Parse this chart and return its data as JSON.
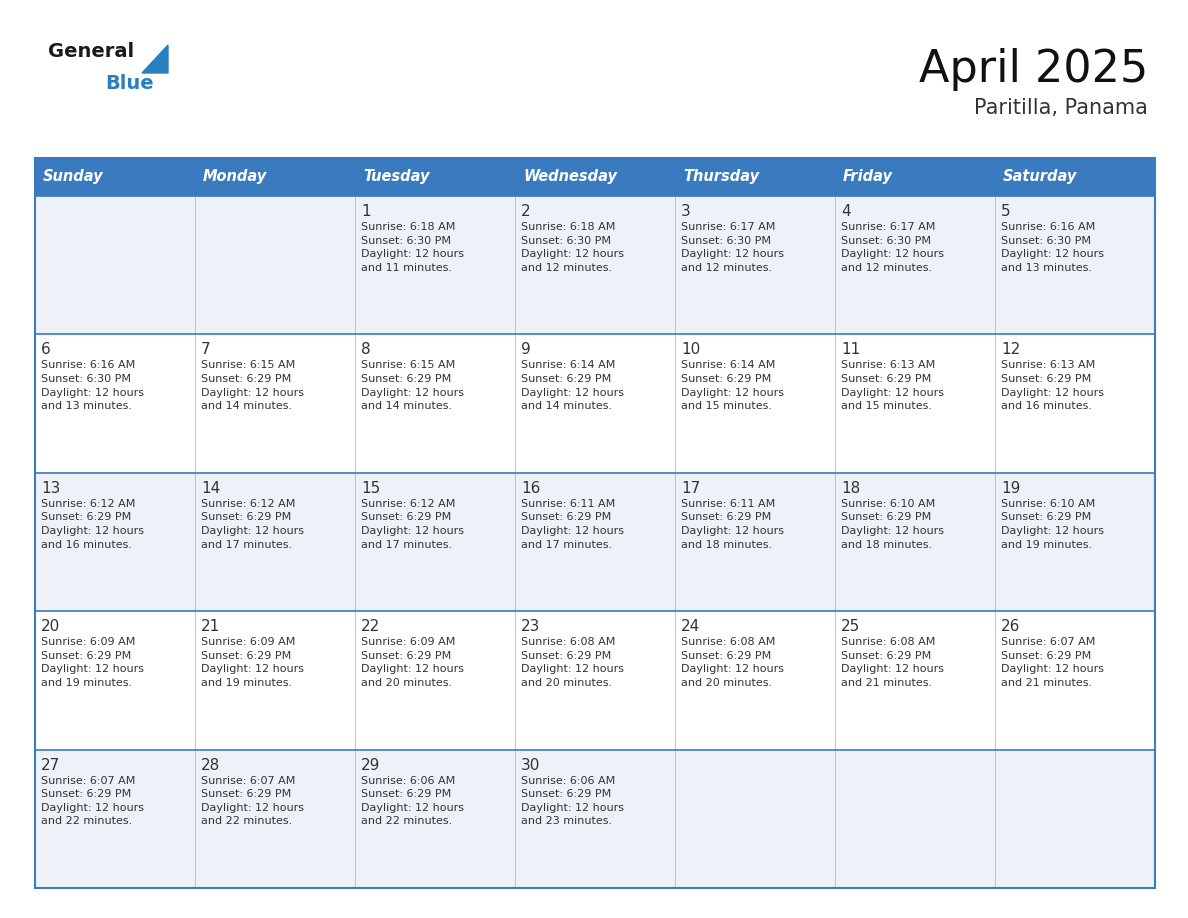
{
  "title": "April 2025",
  "subtitle": "Paritilla, Panama",
  "header_color": "#3a7abf",
  "header_text_color": "#ffffff",
  "border_color": "#3a7abf",
  "row_bg_odd": "#eef2f8",
  "row_bg_even": "#ffffff",
  "text_color": "#333333",
  "day_names": [
    "Sunday",
    "Monday",
    "Tuesday",
    "Wednesday",
    "Thursday",
    "Friday",
    "Saturday"
  ],
  "logo_general_color": "#1a1a1a",
  "logo_blue_color": "#2980c0",
  "logo_triangle_color": "#2980c0",
  "weeks": [
    [
      {
        "day": "",
        "info": ""
      },
      {
        "day": "",
        "info": ""
      },
      {
        "day": "1",
        "info": "Sunrise: 6:18 AM\nSunset: 6:30 PM\nDaylight: 12 hours\nand 11 minutes."
      },
      {
        "day": "2",
        "info": "Sunrise: 6:18 AM\nSunset: 6:30 PM\nDaylight: 12 hours\nand 12 minutes."
      },
      {
        "day": "3",
        "info": "Sunrise: 6:17 AM\nSunset: 6:30 PM\nDaylight: 12 hours\nand 12 minutes."
      },
      {
        "day": "4",
        "info": "Sunrise: 6:17 AM\nSunset: 6:30 PM\nDaylight: 12 hours\nand 12 minutes."
      },
      {
        "day": "5",
        "info": "Sunrise: 6:16 AM\nSunset: 6:30 PM\nDaylight: 12 hours\nand 13 minutes."
      }
    ],
    [
      {
        "day": "6",
        "info": "Sunrise: 6:16 AM\nSunset: 6:30 PM\nDaylight: 12 hours\nand 13 minutes."
      },
      {
        "day": "7",
        "info": "Sunrise: 6:15 AM\nSunset: 6:29 PM\nDaylight: 12 hours\nand 14 minutes."
      },
      {
        "day": "8",
        "info": "Sunrise: 6:15 AM\nSunset: 6:29 PM\nDaylight: 12 hours\nand 14 minutes."
      },
      {
        "day": "9",
        "info": "Sunrise: 6:14 AM\nSunset: 6:29 PM\nDaylight: 12 hours\nand 14 minutes."
      },
      {
        "day": "10",
        "info": "Sunrise: 6:14 AM\nSunset: 6:29 PM\nDaylight: 12 hours\nand 15 minutes."
      },
      {
        "day": "11",
        "info": "Sunrise: 6:13 AM\nSunset: 6:29 PM\nDaylight: 12 hours\nand 15 minutes."
      },
      {
        "day": "12",
        "info": "Sunrise: 6:13 AM\nSunset: 6:29 PM\nDaylight: 12 hours\nand 16 minutes."
      }
    ],
    [
      {
        "day": "13",
        "info": "Sunrise: 6:12 AM\nSunset: 6:29 PM\nDaylight: 12 hours\nand 16 minutes."
      },
      {
        "day": "14",
        "info": "Sunrise: 6:12 AM\nSunset: 6:29 PM\nDaylight: 12 hours\nand 17 minutes."
      },
      {
        "day": "15",
        "info": "Sunrise: 6:12 AM\nSunset: 6:29 PM\nDaylight: 12 hours\nand 17 minutes."
      },
      {
        "day": "16",
        "info": "Sunrise: 6:11 AM\nSunset: 6:29 PM\nDaylight: 12 hours\nand 17 minutes."
      },
      {
        "day": "17",
        "info": "Sunrise: 6:11 AM\nSunset: 6:29 PM\nDaylight: 12 hours\nand 18 minutes."
      },
      {
        "day": "18",
        "info": "Sunrise: 6:10 AM\nSunset: 6:29 PM\nDaylight: 12 hours\nand 18 minutes."
      },
      {
        "day": "19",
        "info": "Sunrise: 6:10 AM\nSunset: 6:29 PM\nDaylight: 12 hours\nand 19 minutes."
      }
    ],
    [
      {
        "day": "20",
        "info": "Sunrise: 6:09 AM\nSunset: 6:29 PM\nDaylight: 12 hours\nand 19 minutes."
      },
      {
        "day": "21",
        "info": "Sunrise: 6:09 AM\nSunset: 6:29 PM\nDaylight: 12 hours\nand 19 minutes."
      },
      {
        "day": "22",
        "info": "Sunrise: 6:09 AM\nSunset: 6:29 PM\nDaylight: 12 hours\nand 20 minutes."
      },
      {
        "day": "23",
        "info": "Sunrise: 6:08 AM\nSunset: 6:29 PM\nDaylight: 12 hours\nand 20 minutes."
      },
      {
        "day": "24",
        "info": "Sunrise: 6:08 AM\nSunset: 6:29 PM\nDaylight: 12 hours\nand 20 minutes."
      },
      {
        "day": "25",
        "info": "Sunrise: 6:08 AM\nSunset: 6:29 PM\nDaylight: 12 hours\nand 21 minutes."
      },
      {
        "day": "26",
        "info": "Sunrise: 6:07 AM\nSunset: 6:29 PM\nDaylight: 12 hours\nand 21 minutes."
      }
    ],
    [
      {
        "day": "27",
        "info": "Sunrise: 6:07 AM\nSunset: 6:29 PM\nDaylight: 12 hours\nand 22 minutes."
      },
      {
        "day": "28",
        "info": "Sunrise: 6:07 AM\nSunset: 6:29 PM\nDaylight: 12 hours\nand 22 minutes."
      },
      {
        "day": "29",
        "info": "Sunrise: 6:06 AM\nSunset: 6:29 PM\nDaylight: 12 hours\nand 22 minutes."
      },
      {
        "day": "30",
        "info": "Sunrise: 6:06 AM\nSunset: 6:29 PM\nDaylight: 12 hours\nand 23 minutes."
      },
      {
        "day": "",
        "info": ""
      },
      {
        "day": "",
        "info": ""
      },
      {
        "day": "",
        "info": ""
      }
    ]
  ]
}
